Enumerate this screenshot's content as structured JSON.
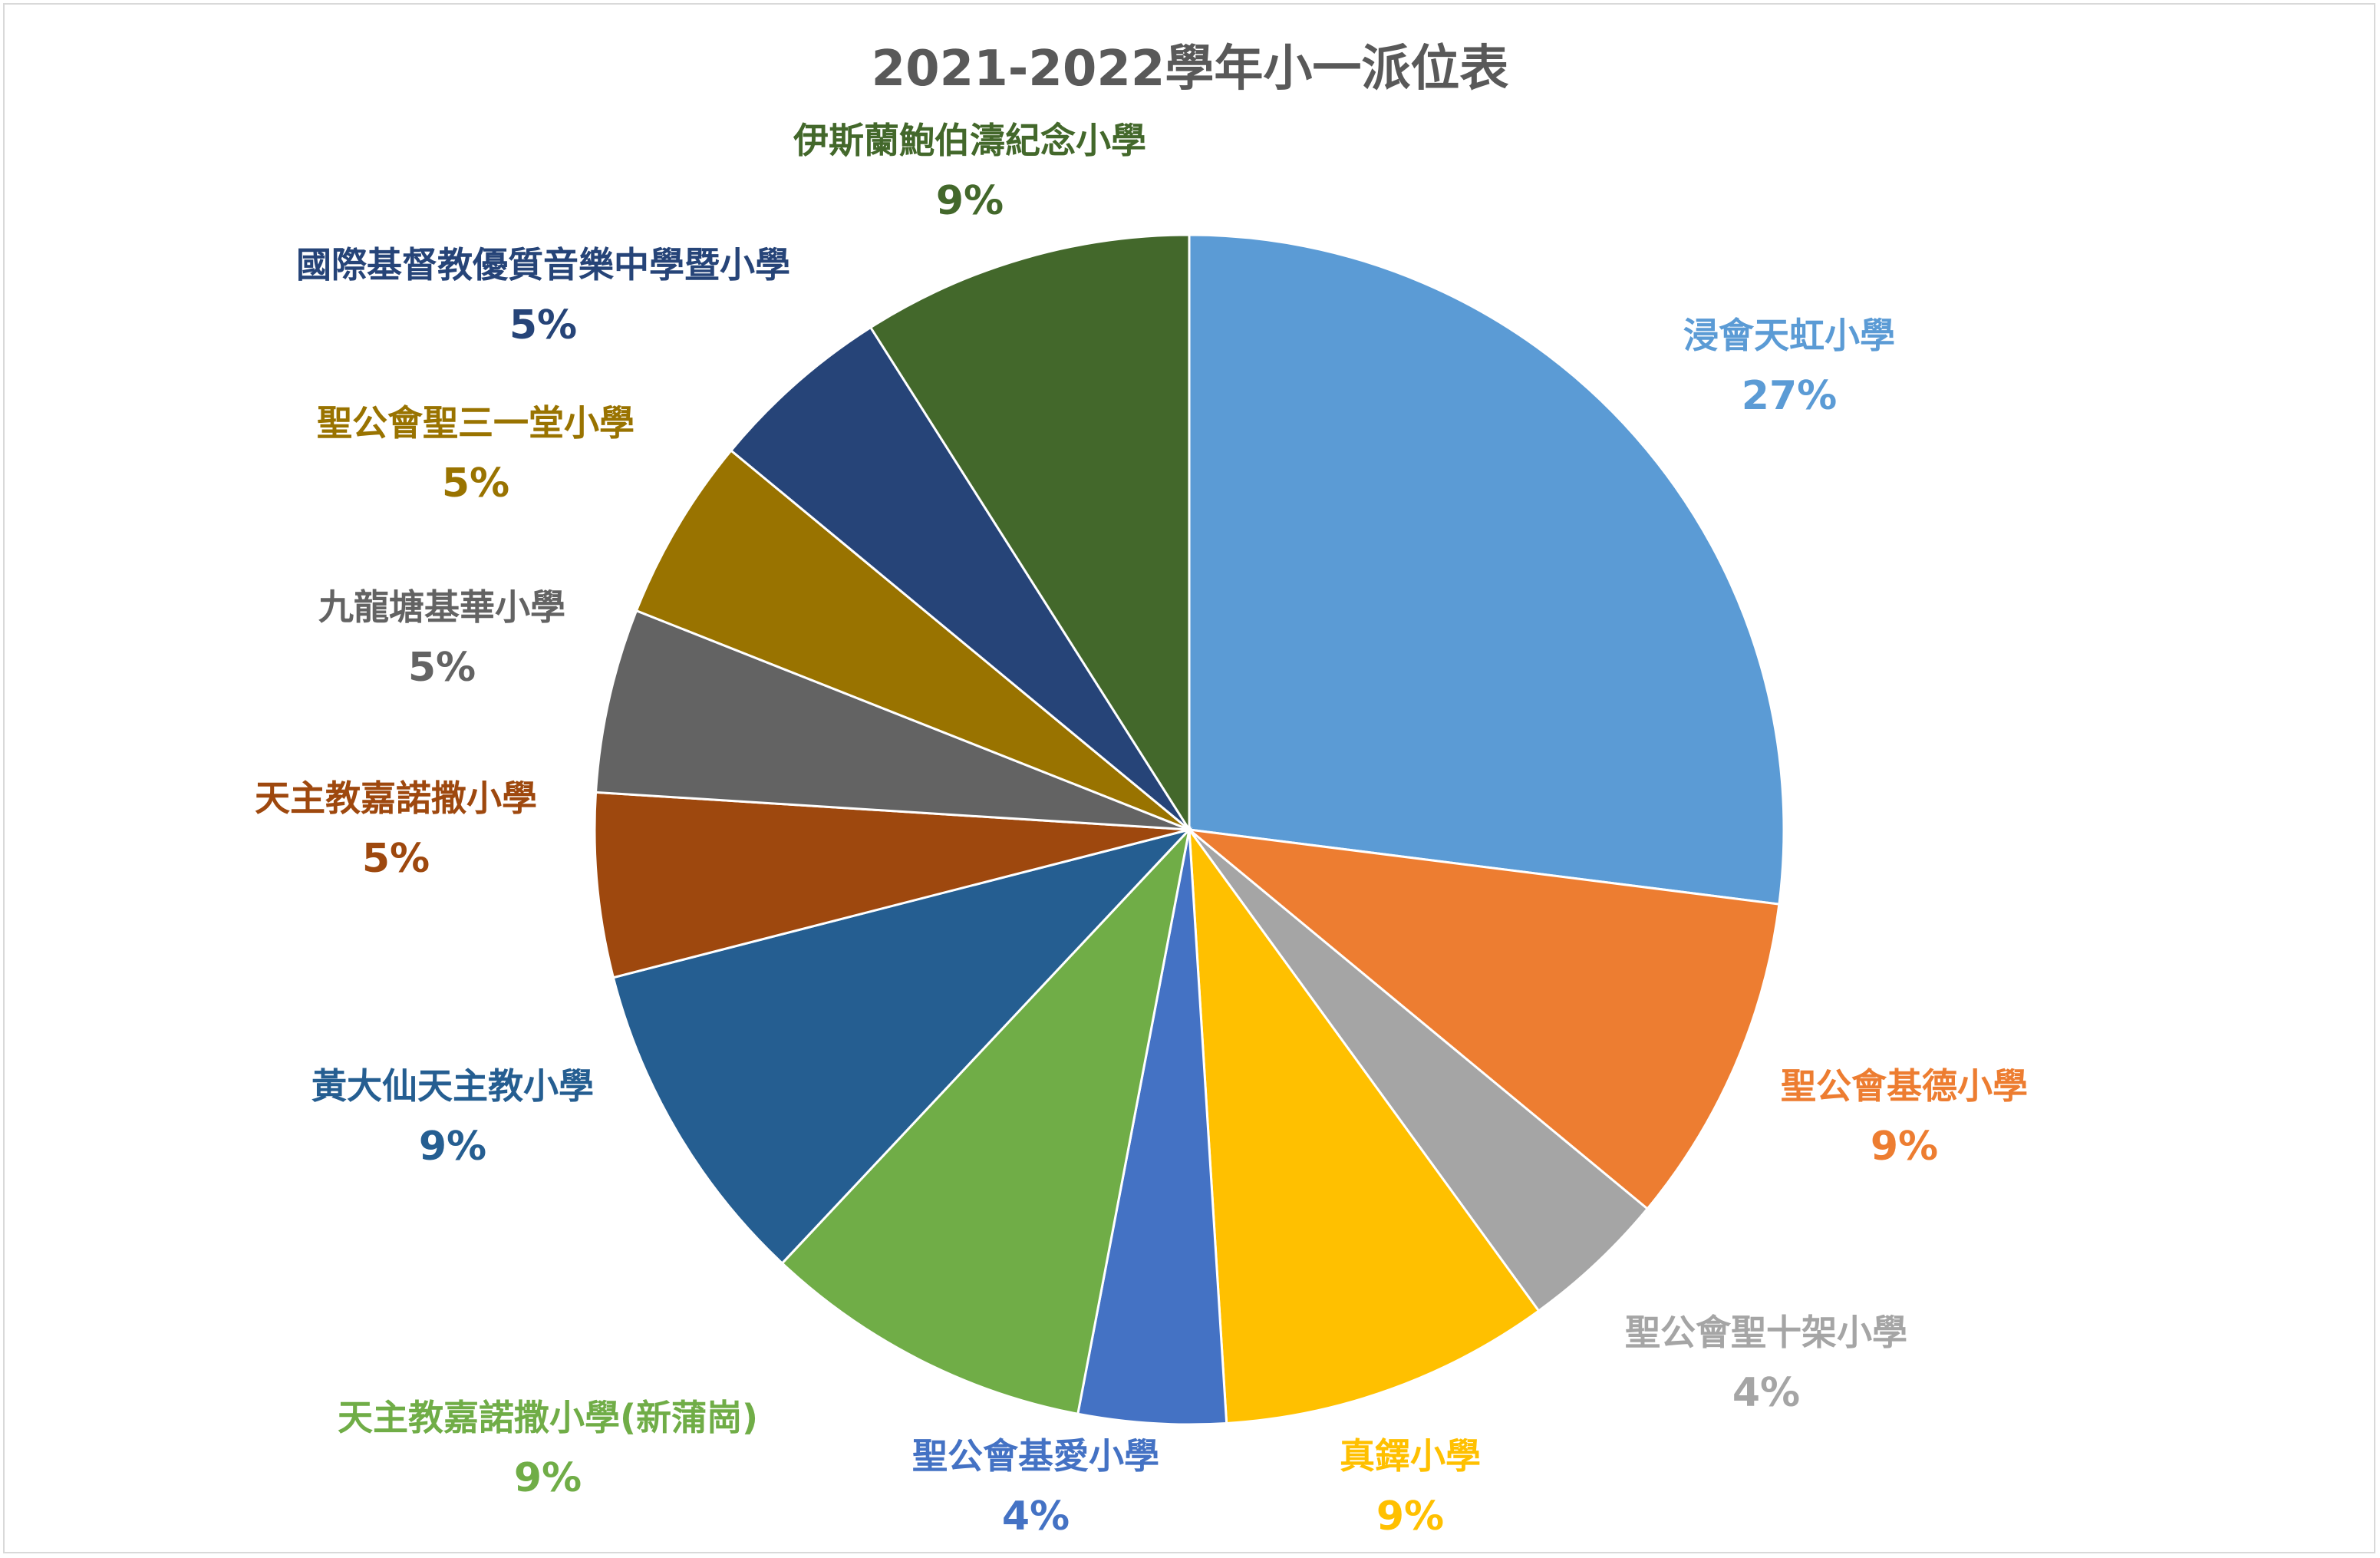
{
  "chart_data": {
    "type": "pie",
    "title": "2021-2022學年小一派位表",
    "start": "12-o-clock",
    "direction": "clockwise",
    "slices": [
      {
        "name": "浸會天虹小學",
        "value": 27,
        "label": "27%",
        "color": "#5B9BD5"
      },
      {
        "name": "聖公會基德小學",
        "value": 9,
        "label": "9%",
        "color": "#ED7D31"
      },
      {
        "name": "聖公會聖十架小學",
        "value": 4,
        "label": "4%",
        "color": "#A5A5A5"
      },
      {
        "name": "真鐸小學",
        "value": 9,
        "label": "9%",
        "color": "#FFC000"
      },
      {
        "name": "聖公會基愛小學",
        "value": 4,
        "label": "4%",
        "color": "#4472C4"
      },
      {
        "name": "天主教嘉諾撒小學(新蒲崗)",
        "value": 9,
        "label": "9%",
        "color": "#70AD47"
      },
      {
        "name": "黃大仙天主教小學",
        "value": 9,
        "label": "9%",
        "color": "#255E91"
      },
      {
        "name": "天主教嘉諾撒小學",
        "value": 5,
        "label": "5%",
        "color": "#9E480E"
      },
      {
        "name": "九龍塘基華小學",
        "value": 5,
        "label": "5%",
        "color": "#636363"
      },
      {
        "name": "聖公會聖三一堂小學",
        "value": 5,
        "label": "5%",
        "color": "#997300"
      },
      {
        "name": "國際基督教優質音樂中學暨小學",
        "value": 5,
        "label": "5%",
        "color": "#264478"
      },
      {
        "name": "伊斯蘭鮑伯濤紀念小學",
        "value": 9,
        "label": "9%",
        "color": "#43682B"
      }
    ]
  }
}
